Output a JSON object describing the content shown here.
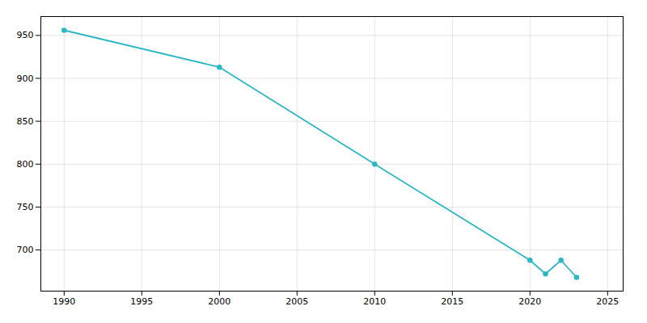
{
  "chart_data": {
    "type": "line",
    "x": [
      1990,
      2000,
      2010,
      2020,
      2021,
      2022,
      2023
    ],
    "values": [
      956,
      913,
      800,
      688,
      672,
      688,
      668
    ],
    "color": "#29b8c4",
    "marker": "circle",
    "xlim": [
      1988.5,
      2026
    ],
    "ylim": [
      652,
      972
    ],
    "xticks": [
      1990,
      1995,
      2000,
      2005,
      2010,
      2015,
      2020,
      2025
    ],
    "yticks": [
      700,
      750,
      800,
      850,
      900,
      950
    ],
    "grid": true
  }
}
